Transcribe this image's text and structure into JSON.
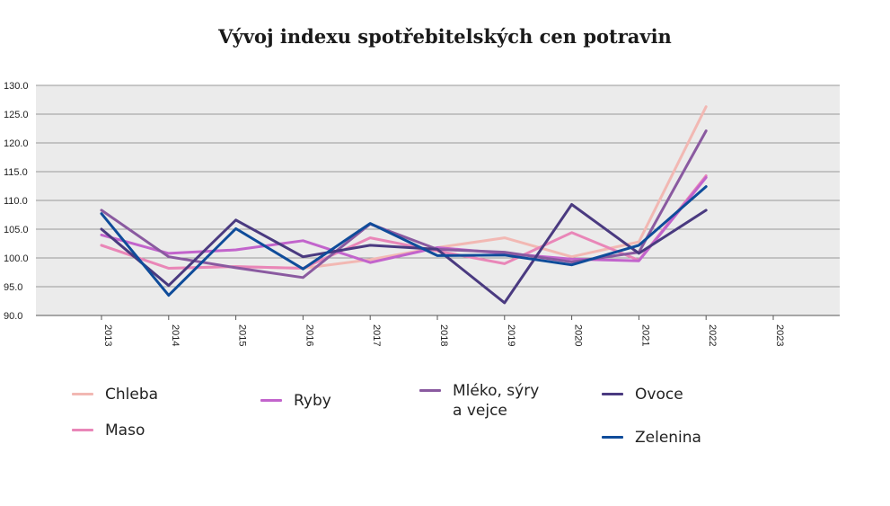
{
  "chart_data": {
    "type": "line",
    "title": "Vývoj indexu spotřebitelských cen potravin",
    "xlabel": "",
    "ylabel": "",
    "categories": [
      "2013",
      "2014",
      "2015",
      "2016",
      "2017",
      "2018",
      "2019",
      "2020",
      "2021",
      "2022",
      "2023"
    ],
    "ylim": [
      90,
      130
    ],
    "yticks": [
      "130.0",
      "125.0",
      "120.0",
      "115.0",
      "110.0",
      "105.0",
      "100.0",
      "95.0",
      "90.0"
    ],
    "grid": true,
    "legend_position": "bottom",
    "series": [
      {
        "name": "Chleba",
        "color": "#f2b8b3",
        "values": [
          102.2,
          98.2,
          98.5,
          98.2,
          99.7,
          101.8,
          103.5,
          100.2,
          102.8,
          126.3,
          null
        ]
      },
      {
        "name": "Maso",
        "color": "#e986b8",
        "values": [
          102.2,
          98.2,
          98.5,
          98.2,
          103.5,
          101.2,
          99.0,
          104.4,
          99.6,
          114.3,
          null
        ]
      },
      {
        "name": "Ryby",
        "color": "#c264cc",
        "values": [
          104.0,
          100.8,
          101.4,
          103.0,
          99.2,
          101.8,
          100.8,
          99.8,
          99.5,
          114.0,
          null
        ]
      },
      {
        "name": "Mléko, sýry\na vejce",
        "color": "#8a5aa0",
        "values": [
          108.3,
          100.2,
          98.3,
          96.6,
          105.9,
          101.5,
          101.0,
          99.3,
          101.0,
          122.1,
          null
        ]
      },
      {
        "name": "Ovoce",
        "color": "#4a3a80",
        "values": [
          105.0,
          95.2,
          106.6,
          100.2,
          102.2,
          101.5,
          92.2,
          109.3,
          100.8,
          108.3,
          null
        ]
      },
      {
        "name": "Zelenina",
        "color": "#0f4c9a",
        "values": [
          107.7,
          93.5,
          105.1,
          98.1,
          106.0,
          100.4,
          100.5,
          98.8,
          102.2,
          112.4,
          null
        ]
      }
    ]
  }
}
